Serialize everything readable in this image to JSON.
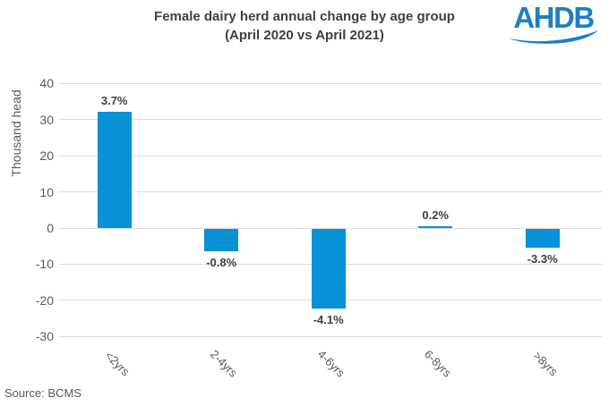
{
  "header": {
    "title_line1": "Female dairy herd annual change by age group",
    "title_line2": "(April 2020 vs April 2021)",
    "logo_text": "AHDB"
  },
  "footer": {
    "source": "Source: BCMS"
  },
  "colors": {
    "bar": "#0991D5",
    "logo_blue": "#1E7FC4",
    "title_text": "#404040",
    "axis_text": "#595959",
    "value_label_text": "#404040",
    "gridline": "#DCDCDC"
  },
  "chart_data": {
    "type": "bar",
    "title": "Female dairy herd annual change by age group (April 2020 vs April 2021)",
    "xlabel": "",
    "ylabel": "Thousand head",
    "categories": [
      "<2yrs",
      "2-4yrs",
      "4-6yrs",
      "6-8yrs",
      ">8yrs"
    ],
    "values": [
      32.3,
      -6.3,
      -22.1,
      0.6,
      -5.2
    ],
    "value_labels": [
      "3.7%",
      "-0.8%",
      "-4.1%",
      "0.2%",
      "-3.3%"
    ],
    "ylim": [
      -30,
      40
    ],
    "ytick_step": 10,
    "yticks": [
      40,
      30,
      20,
      10,
      0,
      -10,
      -20,
      -30
    ],
    "grid": true,
    "legend": false,
    "bar_color": "#0991D5",
    "source": "Source: BCMS"
  }
}
